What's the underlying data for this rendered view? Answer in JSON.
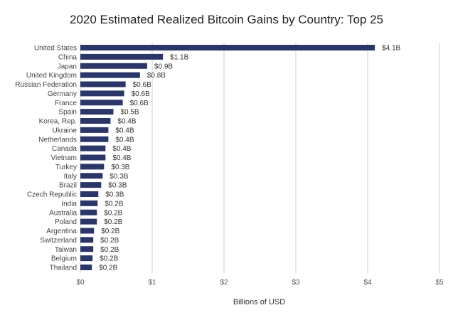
{
  "chart_data": {
    "type": "bar",
    "orientation": "horizontal",
    "title": "2020 Estimated Realized Bitcoin Gains by Country: Top 25",
    "xlabel": "Billions of USD",
    "ylabel": "",
    "xlim": [
      0,
      5
    ],
    "x_ticks": [
      0,
      1,
      2,
      3,
      4,
      5
    ],
    "x_tick_labels": [
      "$0",
      "$1",
      "$2",
      "$3",
      "$4",
      "$5"
    ],
    "grid": "vertical",
    "bar_color": "#2b3668",
    "categories": [
      "United States",
      "China",
      "Japan",
      "United Kingdom",
      "Russian Federation",
      "Germany",
      "France",
      "Spain",
      "Korea, Rep.",
      "Ukraine",
      "Netherlands",
      "Canada",
      "Vietnam",
      "Turkey",
      "Italy",
      "Brazil",
      "Czech Republic",
      "India",
      "Australia",
      "Poland",
      "Argentina",
      "Switzerland",
      "Taiwan",
      "Belgium",
      "Thailand"
    ],
    "values": [
      4.1,
      1.15,
      0.93,
      0.83,
      0.63,
      0.61,
      0.59,
      0.46,
      0.42,
      0.39,
      0.39,
      0.35,
      0.35,
      0.33,
      0.31,
      0.29,
      0.25,
      0.24,
      0.23,
      0.23,
      0.19,
      0.18,
      0.18,
      0.17,
      0.16
    ],
    "value_labels": [
      "$4.1B",
      "$1.1B",
      "$0.9B",
      "$0.8B",
      "$0.6B",
      "$0.6B",
      "$0.6B",
      "$0.5B",
      "$0.4B",
      "$0.4B",
      "$0.4B",
      "$0.4B",
      "$0.4B",
      "$0.3B",
      "$0.3B",
      "$0.3B",
      "$0.3B",
      "$0.2B",
      "$0.2B",
      "$0.2B",
      "$0.2B",
      "$0.2B",
      "$0.2B",
      "$0.2B",
      "$0.2B"
    ]
  }
}
